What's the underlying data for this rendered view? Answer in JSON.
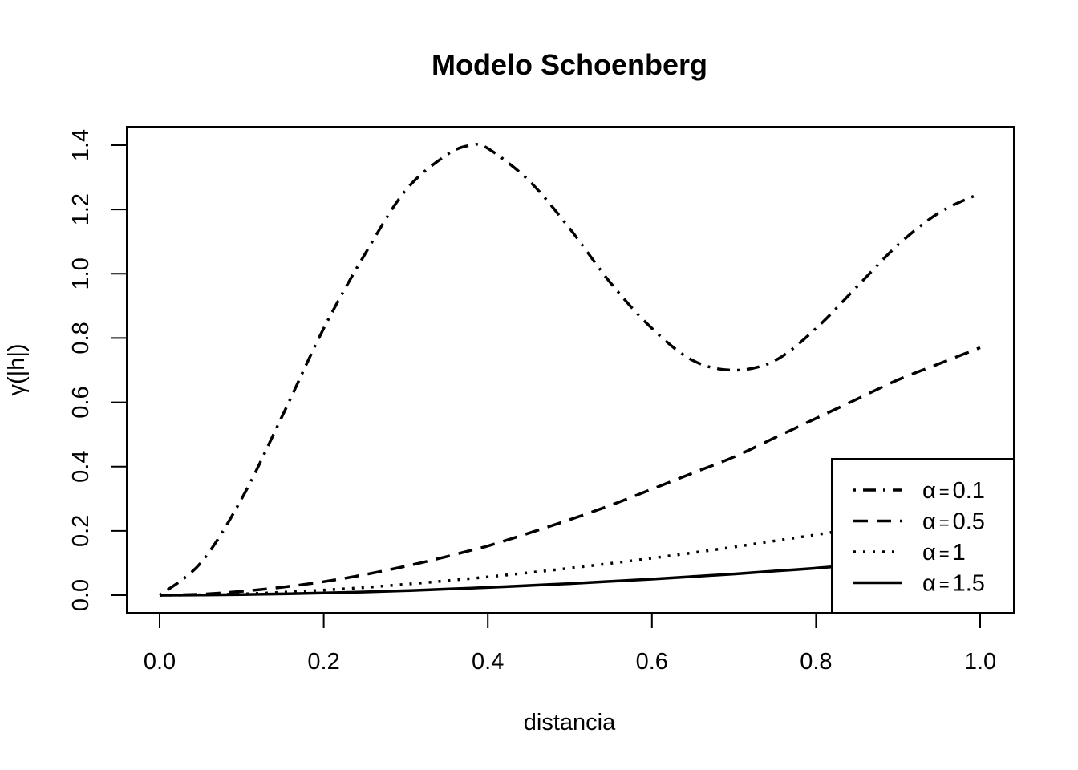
{
  "chart_data": {
    "type": "line",
    "title": "Modelo Schoenberg",
    "xlabel": "distancia",
    "ylabel": "γ(|h|)",
    "xlim": [
      0.0,
      1.0
    ],
    "ylim": [
      0.0,
      1.4
    ],
    "x_ticks": [
      "0.0",
      "0.2",
      "0.4",
      "0.6",
      "0.8",
      "1.0"
    ],
    "y_ticks": [
      "0.0",
      "0.2",
      "0.4",
      "0.6",
      "0.8",
      "1.0",
      "1.2",
      "1.4"
    ],
    "grid": false,
    "legend_position": "bottom-right",
    "x": [
      0.0,
      0.05,
      0.1,
      0.15,
      0.2,
      0.25,
      0.3,
      0.35,
      0.38,
      0.4,
      0.45,
      0.5,
      0.55,
      0.6,
      0.65,
      0.7,
      0.75,
      0.8,
      0.85,
      0.9,
      0.95,
      1.0
    ],
    "series": [
      {
        "name": "α = 0.1",
        "symbol": "α",
        "value": "0.1",
        "dash": "dotdash",
        "values": [
          0.0,
          0.1,
          0.3,
          0.56,
          0.83,
          1.06,
          1.26,
          1.37,
          1.4,
          1.39,
          1.29,
          1.14,
          0.97,
          0.83,
          0.73,
          0.7,
          0.73,
          0.83,
          0.96,
          1.09,
          1.19,
          1.25
        ]
      },
      {
        "name": "α = 0.5",
        "symbol": "α",
        "value": "0.5",
        "dash": "dashed",
        "values": [
          0.0,
          0.003,
          0.012,
          0.025,
          0.042,
          0.064,
          0.09,
          0.12,
          0.14,
          0.153,
          0.193,
          0.235,
          0.28,
          0.33,
          0.38,
          0.43,
          0.49,
          0.55,
          0.61,
          0.67,
          0.72,
          0.77
        ]
      },
      {
        "name": "α = 1",
        "symbol": "α",
        "value": "1",
        "dash": "dotted",
        "values": [
          0.0,
          0.001,
          0.004,
          0.009,
          0.016,
          0.024,
          0.034,
          0.045,
          0.052,
          0.057,
          0.07,
          0.084,
          0.099,
          0.115,
          0.132,
          0.15,
          0.169,
          0.188,
          0.208,
          0.228,
          0.249,
          0.27
        ]
      },
      {
        "name": "α = 1.5",
        "symbol": "α",
        "value": "1.5",
        "dash": "solid",
        "values": [
          0.0,
          0.0005,
          0.002,
          0.004,
          0.007,
          0.01,
          0.014,
          0.019,
          0.022,
          0.024,
          0.03,
          0.036,
          0.043,
          0.05,
          0.058,
          0.066,
          0.075,
          0.084,
          0.094,
          0.105,
          0.116,
          0.128
        ]
      }
    ]
  }
}
